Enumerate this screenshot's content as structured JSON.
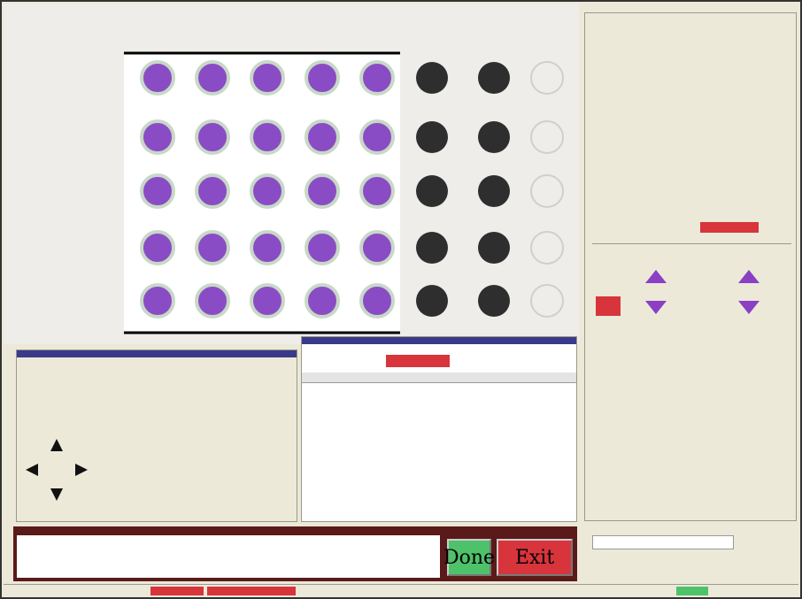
{
  "message_bar": {
    "buttons": [
      "Done",
      "Exit"
    ]
  }
}
